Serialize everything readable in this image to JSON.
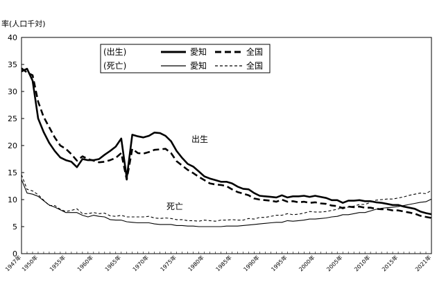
{
  "chart_data": {
    "type": "line",
    "unit_label": "率(人口千対)",
    "ylim": [
      0,
      40
    ],
    "y_ticks": [
      0,
      5,
      10,
      15,
      20,
      25,
      30,
      35,
      40
    ],
    "x_range": [
      1947,
      2021
    ],
    "x_tick_labels": [
      {
        "year": 1947,
        "label": "1947年"
      },
      {
        "year": 1950,
        "label": "1950年"
      },
      {
        "year": 1955,
        "label": "1955年"
      },
      {
        "year": 1960,
        "label": "1960年"
      },
      {
        "year": 1965,
        "label": "1965年"
      },
      {
        "year": 1970,
        "label": "1970年"
      },
      {
        "year": 1975,
        "label": "1975年"
      },
      {
        "year": 1980,
        "label": "1980年"
      },
      {
        "year": 1985,
        "label": "1985年"
      },
      {
        "year": 1990,
        "label": "1990年"
      },
      {
        "year": 1995,
        "label": "1995年"
      },
      {
        "year": 2000,
        "label": "2000年"
      },
      {
        "year": 2005,
        "label": "2005年"
      },
      {
        "year": 2010,
        "label": "2010年"
      },
      {
        "year": 2015,
        "label": "2015年"
      },
      {
        "year": 2021,
        "label": "2021年"
      }
    ],
    "grid": false,
    "legend_position": "top-center",
    "legend": {
      "group_birth": "(出生)",
      "group_death": "(死亡)",
      "aichi": "愛知",
      "national": "全国"
    },
    "annotations": {
      "birth": "出生",
      "death": "死亡"
    },
    "series": [
      {
        "id": "birth_aichi",
        "name": "愛知",
        "style": "thick-solid",
        "points": [
          [
            1947,
            33.7
          ],
          [
            1948,
            34.2
          ],
          [
            1949,
            32
          ],
          [
            1950,
            25
          ],
          [
            1951,
            22.5
          ],
          [
            1952,
            20.5
          ],
          [
            1953,
            19
          ],
          [
            1954,
            17.8
          ],
          [
            1955,
            17.3
          ],
          [
            1956,
            17
          ],
          [
            1957,
            16
          ],
          [
            1958,
            17.5
          ],
          [
            1959,
            17.3
          ],
          [
            1960,
            17.3
          ],
          [
            1961,
            17.5
          ],
          [
            1962,
            18.3
          ],
          [
            1963,
            19
          ],
          [
            1964,
            19.8
          ],
          [
            1965,
            21.3
          ],
          [
            1966,
            14
          ],
          [
            1967,
            22
          ],
          [
            1968,
            21.7
          ],
          [
            1969,
            21.5
          ],
          [
            1970,
            21.8
          ],
          [
            1971,
            22.4
          ],
          [
            1972,
            22.3
          ],
          [
            1973,
            21.8
          ],
          [
            1974,
            20.8
          ],
          [
            1975,
            19
          ],
          [
            1976,
            17.7
          ],
          [
            1977,
            16.6
          ],
          [
            1978,
            16.1
          ],
          [
            1979,
            15.2
          ],
          [
            1980,
            14.3
          ],
          [
            1981,
            13.9
          ],
          [
            1982,
            13.6
          ],
          [
            1983,
            13.3
          ],
          [
            1984,
            13.3
          ],
          [
            1985,
            13
          ],
          [
            1986,
            12.4
          ],
          [
            1987,
            12
          ],
          [
            1988,
            11.9
          ],
          [
            1989,
            11.2
          ],
          [
            1990,
            10.7
          ],
          [
            1991,
            10.6
          ],
          [
            1992,
            10.5
          ],
          [
            1993,
            10.4
          ],
          [
            1994,
            10.8
          ],
          [
            1995,
            10.4
          ],
          [
            1996,
            10.6
          ],
          [
            1997,
            10.6
          ],
          [
            1998,
            10.7
          ],
          [
            1999,
            10.5
          ],
          [
            2000,
            10.7
          ],
          [
            2001,
            10.5
          ],
          [
            2002,
            10.3
          ],
          [
            2003,
            9.9
          ],
          [
            2004,
            9.9
          ],
          [
            2005,
            9.4
          ],
          [
            2006,
            9.8
          ],
          [
            2007,
            9.8
          ],
          [
            2008,
            9.9
          ],
          [
            2009,
            9.7
          ],
          [
            2010,
            9.7
          ],
          [
            2011,
            9.5
          ],
          [
            2012,
            9.4
          ],
          [
            2013,
            9.2
          ],
          [
            2014,
            9.0
          ],
          [
            2015,
            9.0
          ],
          [
            2016,
            8.7
          ],
          [
            2017,
            8.5
          ],
          [
            2018,
            8.3
          ],
          [
            2019,
            7.8
          ],
          [
            2020,
            7.5
          ],
          [
            2021,
            7.3
          ]
        ]
      },
      {
        "id": "birth_national",
        "name": "全国",
        "style": "thick-dashed",
        "points": [
          [
            1947,
            34.3
          ],
          [
            1948,
            33.5
          ],
          [
            1949,
            33
          ],
          [
            1950,
            28.1
          ],
          [
            1951,
            25.3
          ],
          [
            1952,
            23.4
          ],
          [
            1953,
            21.5
          ],
          [
            1954,
            20
          ],
          [
            1955,
            19.4
          ],
          [
            1956,
            18.4
          ],
          [
            1957,
            17.2
          ],
          [
            1958,
            18
          ],
          [
            1959,
            17.5
          ],
          [
            1960,
            17.2
          ],
          [
            1961,
            16.9
          ],
          [
            1962,
            17
          ],
          [
            1963,
            17.3
          ],
          [
            1964,
            17.7
          ],
          [
            1965,
            18.6
          ],
          [
            1966,
            13.7
          ],
          [
            1967,
            19.4
          ],
          [
            1968,
            18.6
          ],
          [
            1969,
            18.5
          ],
          [
            1970,
            18.8
          ],
          [
            1971,
            19.2
          ],
          [
            1972,
            19.3
          ],
          [
            1973,
            19.4
          ],
          [
            1974,
            18.6
          ],
          [
            1975,
            17.1
          ],
          [
            1976,
            16.3
          ],
          [
            1977,
            15.5
          ],
          [
            1978,
            14.9
          ],
          [
            1979,
            14.2
          ],
          [
            1980,
            13.6
          ],
          [
            1981,
            13
          ],
          [
            1982,
            12.8
          ],
          [
            1983,
            12.7
          ],
          [
            1984,
            12.5
          ],
          [
            1985,
            11.9
          ],
          [
            1986,
            11.4
          ],
          [
            1987,
            11.1
          ],
          [
            1988,
            10.8
          ],
          [
            1989,
            10.2
          ],
          [
            1990,
            10
          ],
          [
            1991,
            9.9
          ],
          [
            1992,
            9.8
          ],
          [
            1993,
            9.6
          ],
          [
            1994,
            10
          ],
          [
            1995,
            9.6
          ],
          [
            1996,
            9.7
          ],
          [
            1997,
            9.5
          ],
          [
            1998,
            9.6
          ],
          [
            1999,
            9.4
          ],
          [
            2000,
            9.5
          ],
          [
            2001,
            9.3
          ],
          [
            2002,
            9.2
          ],
          [
            2003,
            8.9
          ],
          [
            2004,
            8.8
          ],
          [
            2005,
            8.4
          ],
          [
            2006,
            8.7
          ],
          [
            2007,
            8.6
          ],
          [
            2008,
            8.7
          ],
          [
            2009,
            8.5
          ],
          [
            2010,
            8.5
          ],
          [
            2011,
            8.3
          ],
          [
            2012,
            8.2
          ],
          [
            2013,
            8.2
          ],
          [
            2014,
            8.0
          ],
          [
            2015,
            8.0
          ],
          [
            2016,
            7.8
          ],
          [
            2017,
            7.6
          ],
          [
            2018,
            7.4
          ],
          [
            2019,
            7.0
          ],
          [
            2020,
            6.8
          ],
          [
            2021,
            6.6
          ]
        ]
      },
      {
        "id": "death_aichi",
        "name": "愛知",
        "style": "thin-solid",
        "points": [
          [
            1947,
            13.7
          ],
          [
            1948,
            11.2
          ],
          [
            1949,
            11
          ],
          [
            1950,
            10.6
          ],
          [
            1951,
            9.8
          ],
          [
            1952,
            9
          ],
          [
            1953,
            8.6
          ],
          [
            1954,
            8.1
          ],
          [
            1955,
            7.6
          ],
          [
            1956,
            7.6
          ],
          [
            1957,
            7.6
          ],
          [
            1958,
            7.1
          ],
          [
            1959,
            6.8
          ],
          [
            1960,
            7.1
          ],
          [
            1961,
            6.9
          ],
          [
            1962,
            6.8
          ],
          [
            1963,
            6.3
          ],
          [
            1964,
            6.2
          ],
          [
            1965,
            6.2
          ],
          [
            1966,
            5.9
          ],
          [
            1967,
            5.8
          ],
          [
            1968,
            5.7
          ],
          [
            1969,
            5.7
          ],
          [
            1970,
            5.7
          ],
          [
            1971,
            5.5
          ],
          [
            1972,
            5.4
          ],
          [
            1973,
            5.4
          ],
          [
            1974,
            5.4
          ],
          [
            1975,
            5.2
          ],
          [
            1976,
            5.2
          ],
          [
            1977,
            5.1
          ],
          [
            1978,
            5.1
          ],
          [
            1979,
            5.0
          ],
          [
            1980,
            5.0
          ],
          [
            1981,
            5.0
          ],
          [
            1982,
            5.0
          ],
          [
            1983,
            5.0
          ],
          [
            1984,
            5.1
          ],
          [
            1985,
            5.1
          ],
          [
            1986,
            5.1
          ],
          [
            1987,
            5.2
          ],
          [
            1988,
            5.3
          ],
          [
            1989,
            5.4
          ],
          [
            1990,
            5.5
          ],
          [
            1991,
            5.6
          ],
          [
            1992,
            5.7
          ],
          [
            1993,
            5.8
          ],
          [
            1994,
            5.8
          ],
          [
            1995,
            6.1
          ],
          [
            1996,
            6.0
          ],
          [
            1997,
            6.1
          ],
          [
            1998,
            6.2
          ],
          [
            1999,
            6.4
          ],
          [
            2000,
            6.4
          ],
          [
            2001,
            6.5
          ],
          [
            2002,
            6.6
          ],
          [
            2003,
            6.8
          ],
          [
            2004,
            6.9
          ],
          [
            2005,
            7.2
          ],
          [
            2006,
            7.2
          ],
          [
            2007,
            7.4
          ],
          [
            2008,
            7.6
          ],
          [
            2009,
            7.6
          ],
          [
            2010,
            7.9
          ],
          [
            2011,
            8.2
          ],
          [
            2012,
            8.4
          ],
          [
            2013,
            8.5
          ],
          [
            2014,
            8.6
          ],
          [
            2015,
            8.7
          ],
          [
            2016,
            8.9
          ],
          [
            2017,
            9.1
          ],
          [
            2018,
            9.3
          ],
          [
            2019,
            9.5
          ],
          [
            2020,
            9.6
          ],
          [
            2021,
            10.1
          ]
        ]
      },
      {
        "id": "death_national",
        "name": "全国",
        "style": "thin-dashed",
        "points": [
          [
            1947,
            14.6
          ],
          [
            1948,
            11.9
          ],
          [
            1949,
            11.6
          ],
          [
            1950,
            10.9
          ],
          [
            1951,
            9.9
          ],
          [
            1952,
            8.9
          ],
          [
            1953,
            8.9
          ],
          [
            1954,
            8.2
          ],
          [
            1955,
            7.8
          ],
          [
            1956,
            8.0
          ],
          [
            1957,
            8.3
          ],
          [
            1958,
            7.4
          ],
          [
            1959,
            7.4
          ],
          [
            1960,
            7.6
          ],
          [
            1961,
            7.4
          ],
          [
            1962,
            7.5
          ],
          [
            1963,
            7.0
          ],
          [
            1964,
            6.9
          ],
          [
            1965,
            7.1
          ],
          [
            1966,
            6.8
          ],
          [
            1967,
            6.8
          ],
          [
            1968,
            6.8
          ],
          [
            1969,
            6.8
          ],
          [
            1970,
            6.9
          ],
          [
            1971,
            6.6
          ],
          [
            1972,
            6.5
          ],
          [
            1973,
            6.6
          ],
          [
            1974,
            6.5
          ],
          [
            1975,
            6.3
          ],
          [
            1976,
            6.3
          ],
          [
            1977,
            6.1
          ],
          [
            1978,
            6.1
          ],
          [
            1979,
            6.0
          ],
          [
            1980,
            6.2
          ],
          [
            1981,
            6.1
          ],
          [
            1982,
            6.0
          ],
          [
            1983,
            6.2
          ],
          [
            1984,
            6.2
          ],
          [
            1985,
            6.3
          ],
          [
            1986,
            6.2
          ],
          [
            1987,
            6.2
          ],
          [
            1988,
            6.5
          ],
          [
            1989,
            6.4
          ],
          [
            1990,
            6.7
          ],
          [
            1991,
            6.7
          ],
          [
            1992,
            6.9
          ],
          [
            1993,
            7.1
          ],
          [
            1994,
            7.1
          ],
          [
            1995,
            7.4
          ],
          [
            1996,
            7.2
          ],
          [
            1997,
            7.3
          ],
          [
            1998,
            7.5
          ],
          [
            1999,
            7.8
          ],
          [
            2000,
            7.7
          ],
          [
            2001,
            7.7
          ],
          [
            2002,
            7.8
          ],
          [
            2003,
            8.0
          ],
          [
            2004,
            8.2
          ],
          [
            2005,
            8.6
          ],
          [
            2006,
            8.6
          ],
          [
            2007,
            8.8
          ],
          [
            2008,
            9.1
          ],
          [
            2009,
            9.1
          ],
          [
            2010,
            9.5
          ],
          [
            2011,
            9.9
          ],
          [
            2012,
            10.0
          ],
          [
            2013,
            10.1
          ],
          [
            2014,
            10.1
          ],
          [
            2015,
            10.3
          ],
          [
            2016,
            10.5
          ],
          [
            2017,
            10.8
          ],
          [
            2018,
            11.0
          ],
          [
            2019,
            11.2
          ],
          [
            2020,
            11.1
          ],
          [
            2021,
            11.7
          ]
        ]
      }
    ]
  }
}
